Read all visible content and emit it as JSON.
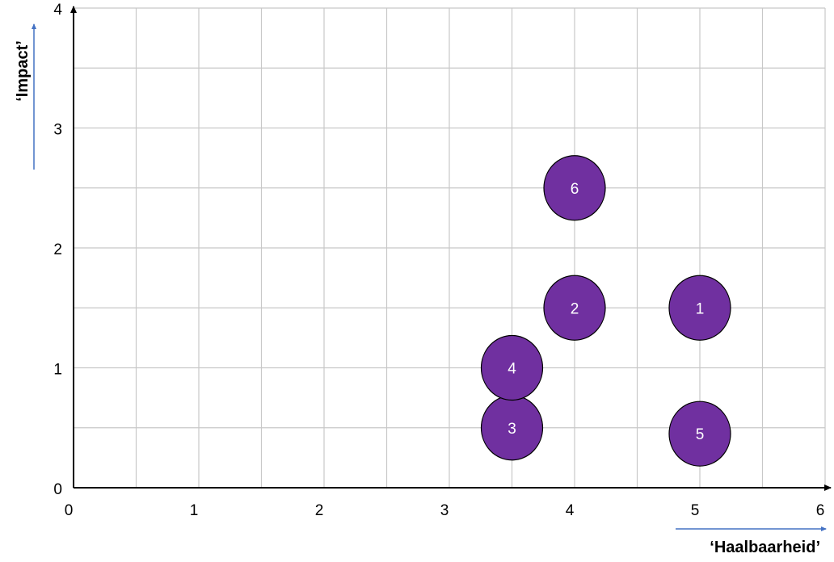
{
  "chart_data": {
    "type": "scatter",
    "xlabel": "‘Haalbaarheid’",
    "ylabel": "‘Impact’",
    "xlim": [
      0,
      6
    ],
    "ylim": [
      0,
      4
    ],
    "x_ticks": [
      "0",
      "1",
      "2",
      "3",
      "4",
      "5",
      "6"
    ],
    "y_ticks": [
      "0",
      "1",
      "2",
      "3",
      "4"
    ],
    "grid": true,
    "grid_step_x": 0.5,
    "grid_step_y": 0.5,
    "marker_color": "#7030a0",
    "label_color": "#ffffff",
    "axis_arrow_color": "#4472c4",
    "points": [
      {
        "label": "1",
        "x": 5.0,
        "y": 1.5
      },
      {
        "label": "2",
        "x": 4.0,
        "y": 1.5
      },
      {
        "label": "3",
        "x": 3.5,
        "y": 0.5
      },
      {
        "label": "4",
        "x": 3.5,
        "y": 1.0
      },
      {
        "label": "5",
        "x": 5.0,
        "y": 0.45
      },
      {
        "label": "6",
        "x": 4.0,
        "y": 2.5
      }
    ]
  }
}
